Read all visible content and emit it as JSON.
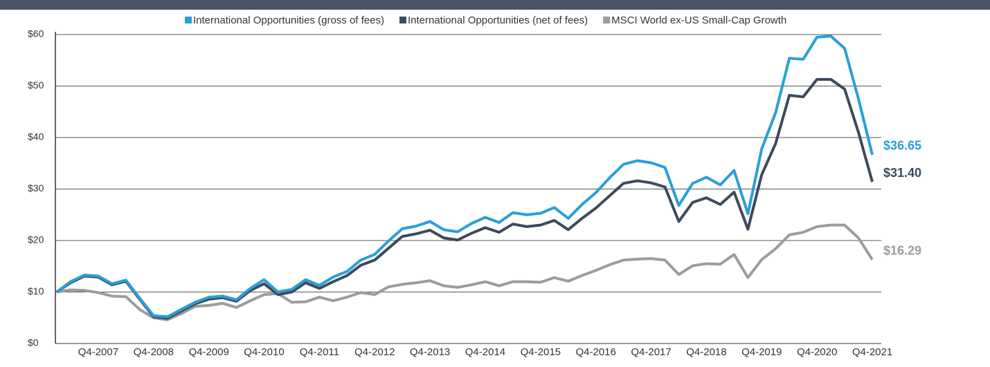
{
  "chart_data": {
    "type": "line",
    "legend": "top",
    "categories": [
      null,
      null,
      null,
      "Q4-2007",
      null,
      null,
      null,
      "Q4-2008",
      null,
      null,
      null,
      "Q4-2009",
      null,
      null,
      null,
      "Q4-2010",
      null,
      null,
      null,
      "Q4-2011",
      null,
      null,
      null,
      "Q4-2012",
      null,
      null,
      null,
      "Q4-2013",
      null,
      null,
      null,
      "Q4-2014",
      null,
      null,
      null,
      "Q4-2015",
      null,
      null,
      null,
      "Q4-2016",
      null,
      null,
      null,
      "Q4-2017",
      null,
      null,
      null,
      "Q4-2018",
      null,
      null,
      null,
      "Q4-2019",
      null,
      null,
      null,
      "Q4-2020",
      null,
      null,
      null,
      "Q4-2021"
    ],
    "series": [
      {
        "name": "International Opportunities (gross of fees)",
        "color": "#2a9fd8",
        "values": [
          10,
          12,
          13.3,
          13.1,
          11.6,
          12.3,
          8.8,
          5.4,
          5.2,
          6.6,
          8,
          9,
          9.2,
          8.5,
          10.7,
          12.4,
          10,
          10.5,
          12.4,
          11.3,
          12.9,
          14,
          16.2,
          17.3,
          19.9,
          22.3,
          22.8,
          23.7,
          22.1,
          21.7,
          23.3,
          24.5,
          23.5,
          25.4,
          25,
          25.3,
          26.4,
          24.3,
          27,
          29.3,
          32.2,
          34.8,
          35.5,
          35.1,
          34.2,
          26.8,
          31.1,
          32.3,
          30.8,
          33.6,
          25.2,
          37.8,
          44.8,
          55.4,
          55.2,
          59.5,
          59.7,
          57.3,
          47.5,
          36.65
        ],
        "value_labels": [
          null,
          null,
          null,
          null,
          null,
          null,
          null,
          null,
          null,
          null,
          null,
          null,
          null,
          null,
          null,
          null,
          null,
          null,
          null,
          null,
          null,
          null,
          null,
          null,
          null,
          null,
          null,
          null,
          null,
          null,
          null,
          null,
          null,
          null,
          null,
          null,
          null,
          null,
          null,
          null,
          null,
          null,
          null,
          null,
          null,
          null,
          null,
          null,
          null,
          null,
          null,
          null,
          null,
          null,
          null,
          null,
          null,
          null,
          null,
          "$36.65"
        ]
      },
      {
        "name": "International Opportunities (net of fees)",
        "color": "#3d4a5a",
        "values": [
          10,
          11.8,
          13.1,
          12.9,
          11.4,
          12.1,
          8.6,
          5.2,
          4.9,
          6.3,
          7.7,
          8.6,
          8.9,
          8.2,
          10.3,
          11.6,
          9.5,
          10,
          11.8,
          10.7,
          12,
          13.2,
          15.2,
          16.2,
          18.5,
          20.8,
          21.3,
          22,
          20.5,
          20.1,
          21.4,
          22.5,
          21.6,
          23.2,
          22.7,
          23,
          23.9,
          22.1,
          24.3,
          26.3,
          28.7,
          31.1,
          31.6,
          31.2,
          30.4,
          23.7,
          27.4,
          28.3,
          27,
          29.4,
          22.2,
          32.8,
          38.8,
          48.2,
          47.9,
          51.3,
          51.3,
          49.4,
          41,
          31.4
        ],
        "value_labels": [
          null,
          null,
          null,
          null,
          null,
          null,
          null,
          null,
          null,
          null,
          null,
          null,
          null,
          null,
          null,
          null,
          null,
          null,
          null,
          null,
          null,
          null,
          null,
          null,
          null,
          null,
          null,
          null,
          null,
          null,
          null,
          null,
          null,
          null,
          null,
          null,
          null,
          null,
          null,
          null,
          null,
          null,
          null,
          null,
          null,
          null,
          null,
          null,
          null,
          null,
          null,
          null,
          null,
          null,
          null,
          null,
          null,
          null,
          null,
          "$31.40"
        ]
      },
      {
        "name": "MSCI World ex-US  Small-Cap Growth",
        "color": "#9c9c9c",
        "values": [
          10,
          10.4,
          10.3,
          9.9,
          9.2,
          9.1,
          6.6,
          5,
          4.6,
          5.8,
          7.2,
          7.4,
          7.8,
          7,
          8.3,
          9.5,
          9.7,
          8,
          8.1,
          9,
          8.3,
          9,
          9.9,
          9.5,
          11,
          11.5,
          11.8,
          12.2,
          11.2,
          10.9,
          11.4,
          12,
          11.2,
          12,
          12,
          11.9,
          12.8,
          12.1,
          13.2,
          14.2,
          15.3,
          16.2,
          16.4,
          16.5,
          16.2,
          13.4,
          15.1,
          15.5,
          15.4,
          17.3,
          12.8,
          16.3,
          18.4,
          21.1,
          21.6,
          22.7,
          23,
          23,
          20.5,
          16.29
        ],
        "value_labels": [
          null,
          null,
          null,
          null,
          null,
          null,
          null,
          null,
          null,
          null,
          null,
          null,
          null,
          null,
          null,
          null,
          null,
          null,
          null,
          null,
          null,
          null,
          null,
          null,
          null,
          null,
          null,
          null,
          null,
          null,
          null,
          null,
          null,
          null,
          null,
          null,
          null,
          null,
          null,
          null,
          null,
          null,
          null,
          null,
          null,
          null,
          null,
          null,
          null,
          null,
          null,
          null,
          null,
          null,
          null,
          null,
          null,
          null,
          null,
          "$16.29"
        ]
      }
    ],
    "ylim": [
      0,
      60
    ],
    "yticks": [
      {
        "value": 0,
        "label": "$0"
      },
      {
        "value": 10,
        "label": "$10"
      },
      {
        "value": 20,
        "label": "$20"
      },
      {
        "value": 30,
        "label": "$30"
      },
      {
        "value": 40,
        "label": "$40"
      },
      {
        "value": 50,
        "label": "$50"
      },
      {
        "value": 60,
        "label": "$60"
      }
    ],
    "grid": true
  }
}
